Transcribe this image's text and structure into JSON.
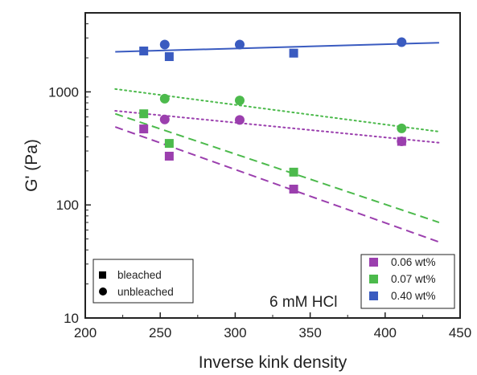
{
  "chart_data": {
    "type": "scatter",
    "xlabel": "Inverse kink density",
    "ylabel": "G' (Pa)",
    "xlim": [
      200,
      450
    ],
    "ylim": [
      10,
      5000
    ],
    "yscale": "log",
    "xticks": [
      200,
      250,
      300,
      350,
      400,
      450
    ],
    "yticks": [
      10,
      100,
      1000
    ],
    "grid": false,
    "annotation": "6 mM HCl",
    "marker_legend": {
      "position": "bottom-left",
      "items": [
        {
          "label": "bleached",
          "marker": "square"
        },
        {
          "label": "unbleached",
          "marker": "circle"
        }
      ]
    },
    "color_legend": {
      "position": "bottom-right",
      "items": [
        {
          "label": "0.06 wt%",
          "color": "#9b3fae"
        },
        {
          "label": "0.07 wt%",
          "color": "#4cba4c"
        },
        {
          "label": "0.40 wt%",
          "color": "#3a5bc0"
        }
      ]
    },
    "series": [
      {
        "color": "#9b3fae",
        "bleached": [
          [
            239,
            470
          ],
          [
            256,
            270
          ],
          [
            339,
            138
          ],
          [
            411,
            365
          ]
        ],
        "unbleached": [
          [
            253,
            570
          ],
          [
            303,
            565
          ],
          [
            411,
            365
          ]
        ],
        "fits": [
          {
            "style": "dashed",
            "from": [
              220,
              490
            ],
            "to": [
              436,
              47
            ]
          },
          {
            "style": "dotted",
            "from": [
              220,
              680
            ],
            "to": [
              436,
              355
            ]
          }
        ]
      },
      {
        "color": "#4cba4c",
        "bleached": [
          [
            239,
            640
          ],
          [
            256,
            350
          ],
          [
            339,
            195
          ]
        ],
        "unbleached": [
          [
            253,
            870
          ],
          [
            303,
            840
          ],
          [
            411,
            475
          ]
        ],
        "fits": [
          {
            "style": "dashed",
            "from": [
              220,
              640
            ],
            "to": [
              436,
              70
            ]
          },
          {
            "style": "dotted",
            "from": [
              220,
              1060
            ],
            "to": [
              436,
              445
            ]
          }
        ]
      },
      {
        "color": "#3a5bc0",
        "bleached": [
          [
            239,
            2300
          ],
          [
            256,
            2050
          ],
          [
            339,
            2200
          ]
        ],
        "unbleached": [
          [
            253,
            2620
          ],
          [
            303,
            2620
          ],
          [
            411,
            2750
          ]
        ],
        "fits": [
          {
            "style": "solid",
            "from": [
              220,
              2260
            ],
            "to": [
              436,
              2720
            ]
          }
        ]
      }
    ]
  }
}
